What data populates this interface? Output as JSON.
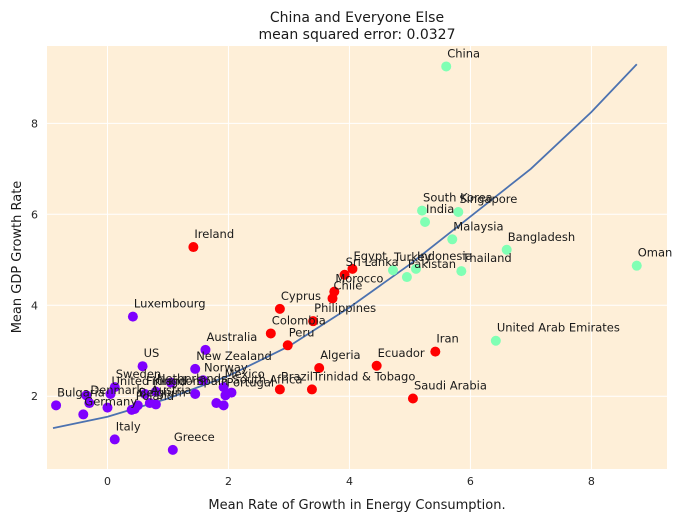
{
  "chart_data": {
    "type": "scatter",
    "title": "China and Everyone Else",
    "subtitle": "mean squared error: 0.0327",
    "xlabel": "Mean Rate of Growth in Energy Consumption.",
    "ylabel": "Mean GDP Growth Rate",
    "xlim": [
      -1.0,
      9.25
    ],
    "ylim": [
      0.4,
      9.7
    ],
    "xticks": [
      0,
      2,
      4,
      6,
      8
    ],
    "yticks": [
      2,
      4,
      6,
      8
    ],
    "grid": true,
    "legend": "none",
    "colors": {
      "background": "#feefd8",
      "grid": "#ffffff",
      "fit_line": "#4c72b0",
      "cluster_low": "#7f00ff",
      "cluster_mid": "#ff0000",
      "cluster_high": "#80ffb4"
    },
    "fit_line": {
      "x": [
        -0.9,
        0,
        1,
        2,
        3,
        4,
        5,
        6,
        7,
        8,
        8.75
      ],
      "y": [
        1.3,
        1.55,
        1.95,
        2.45,
        3.1,
        3.95,
        4.9,
        5.95,
        7.0,
        8.25,
        9.3
      ]
    },
    "points": [
      {
        "label": "China",
        "x": 5.6,
        "y": 9.25,
        "cluster": "high"
      },
      {
        "label": "South Korea",
        "x": 5.2,
        "y": 6.08,
        "cluster": "high"
      },
      {
        "label": "Singapore",
        "x": 5.8,
        "y": 6.05,
        "cluster": "high"
      },
      {
        "label": "India",
        "x": 5.25,
        "y": 5.83,
        "cluster": "high"
      },
      {
        "label": "Malaysia",
        "x": 5.7,
        "y": 5.45,
        "cluster": "high"
      },
      {
        "label": "Bangladesh",
        "x": 6.6,
        "y": 5.22,
        "cluster": "high"
      },
      {
        "label": "Oman",
        "x": 8.75,
        "y": 4.87,
        "cluster": "high"
      },
      {
        "label": "Indonesia",
        "x": 5.1,
        "y": 4.8,
        "cluster": "high"
      },
      {
        "label": "Turkey",
        "x": 4.72,
        "y": 4.77,
        "cluster": "high"
      },
      {
        "label": "Pakistan",
        "x": 4.95,
        "y": 4.62,
        "cluster": "high"
      },
      {
        "label": "Thailand",
        "x": 5.85,
        "y": 4.75,
        "cluster": "high"
      },
      {
        "label": "United Arab Emirates",
        "x": 6.42,
        "y": 3.22,
        "cluster": "high"
      },
      {
        "label": "Ireland",
        "x": 1.42,
        "y": 5.28,
        "cluster": "mid"
      },
      {
        "label": "Egypt",
        "x": 4.05,
        "y": 4.8,
        "cluster": "mid"
      },
      {
        "label": "Sri Lanka",
        "x": 3.92,
        "y": 4.67,
        "cluster": "mid"
      },
      {
        "label": "Morocco",
        "x": 3.75,
        "y": 4.3,
        "cluster": "mid"
      },
      {
        "label": "Chile",
        "x": 3.72,
        "y": 4.15,
        "cluster": "mid"
      },
      {
        "label": "Cyprus",
        "x": 2.85,
        "y": 3.92,
        "cluster": "mid"
      },
      {
        "label": "Philippines",
        "x": 3.4,
        "y": 3.65,
        "cluster": "mid"
      },
      {
        "label": "Colombia",
        "x": 2.7,
        "y": 3.38,
        "cluster": "mid"
      },
      {
        "label": "Peru",
        "x": 2.98,
        "y": 3.12,
        "cluster": "mid"
      },
      {
        "label": "Iran",
        "x": 5.42,
        "y": 2.98,
        "cluster": "mid"
      },
      {
        "label": "Algeria",
        "x": 3.5,
        "y": 2.62,
        "cluster": "mid"
      },
      {
        "label": "Ecuador",
        "x": 4.45,
        "y": 2.67,
        "cluster": "mid"
      },
      {
        "label": "Brazil",
        "x": 2.85,
        "y": 2.15,
        "cluster": "mid"
      },
      {
        "label": "Trinidad & Tobago",
        "x": 3.38,
        "y": 2.15,
        "cluster": "mid"
      },
      {
        "label": "Saudi Arabia",
        "x": 5.05,
        "y": 1.95,
        "cluster": "mid"
      },
      {
        "label": "Luxembourg",
        "x": 0.42,
        "y": 3.75,
        "cluster": "low"
      },
      {
        "label": "Australia",
        "x": 1.62,
        "y": 3.02,
        "cluster": "low"
      },
      {
        "label": "US",
        "x": 0.58,
        "y": 2.66,
        "cluster": "low"
      },
      {
        "label": "New Zealand",
        "x": 1.45,
        "y": 2.6,
        "cluster": "low"
      },
      {
        "label": "Norway",
        "x": 1.58,
        "y": 2.35,
        "cluster": "low"
      },
      {
        "label": "Sweden",
        "x": 0.12,
        "y": 2.2,
        "cluster": "low"
      },
      {
        "label": "United Kingdom",
        "x": 0.05,
        "y": 2.05,
        "cluster": "low"
      },
      {
        "label": "Finland",
        "x": 0.62,
        "y": 2.05,
        "cluster": "low"
      },
      {
        "label": "Netherlands",
        "x": 0.8,
        "y": 2.1,
        "cluster": "low"
      },
      {
        "label": "Spain",
        "x": 1.45,
        "y": 2.05,
        "cluster": "low"
      },
      {
        "label": "Mexico",
        "x": 1.92,
        "y": 2.2,
        "cluster": "low"
      },
      {
        "label": "South Africa",
        "x": 2.05,
        "y": 2.08,
        "cluster": "low"
      },
      {
        "label": "Portugal",
        "x": 1.95,
        "y": 2.02,
        "cluster": "low"
      },
      {
        "label": "Bulgaria",
        "x": -0.85,
        "y": 1.8,
        "cluster": "low"
      },
      {
        "label": "Denmark",
        "x": -0.3,
        "y": 1.85,
        "cluster": "low"
      },
      {
        "label": "Belgium",
        "x": 0.5,
        "y": 1.8,
        "cluster": "low"
      },
      {
        "label": "Austria",
        "x": 0.7,
        "y": 1.85,
        "cluster": "low"
      },
      {
        "label": "Germany",
        "x": -0.4,
        "y": 1.6,
        "cluster": "low"
      },
      {
        "label": "Poland",
        "x": 0.45,
        "y": 1.72,
        "cluster": "low"
      },
      {
        "label": "Italy",
        "x": 0.12,
        "y": 1.05,
        "cluster": "low"
      },
      {
        "label": "Greece",
        "x": 1.08,
        "y": 0.82,
        "cluster": "low"
      }
    ],
    "extra_points": [
      {
        "x": -0.35,
        "y": 2.02,
        "cluster": "low"
      },
      {
        "x": 0.0,
        "y": 1.75,
        "cluster": "low"
      },
      {
        "x": 0.4,
        "y": 1.7,
        "cluster": "low"
      },
      {
        "x": 0.8,
        "y": 1.82,
        "cluster": "low"
      },
      {
        "x": 1.05,
        "y": 2.3,
        "cluster": "low"
      },
      {
        "x": 1.8,
        "y": 1.85,
        "cluster": "low"
      },
      {
        "x": 1.92,
        "y": 1.8,
        "cluster": "low"
      }
    ]
  }
}
